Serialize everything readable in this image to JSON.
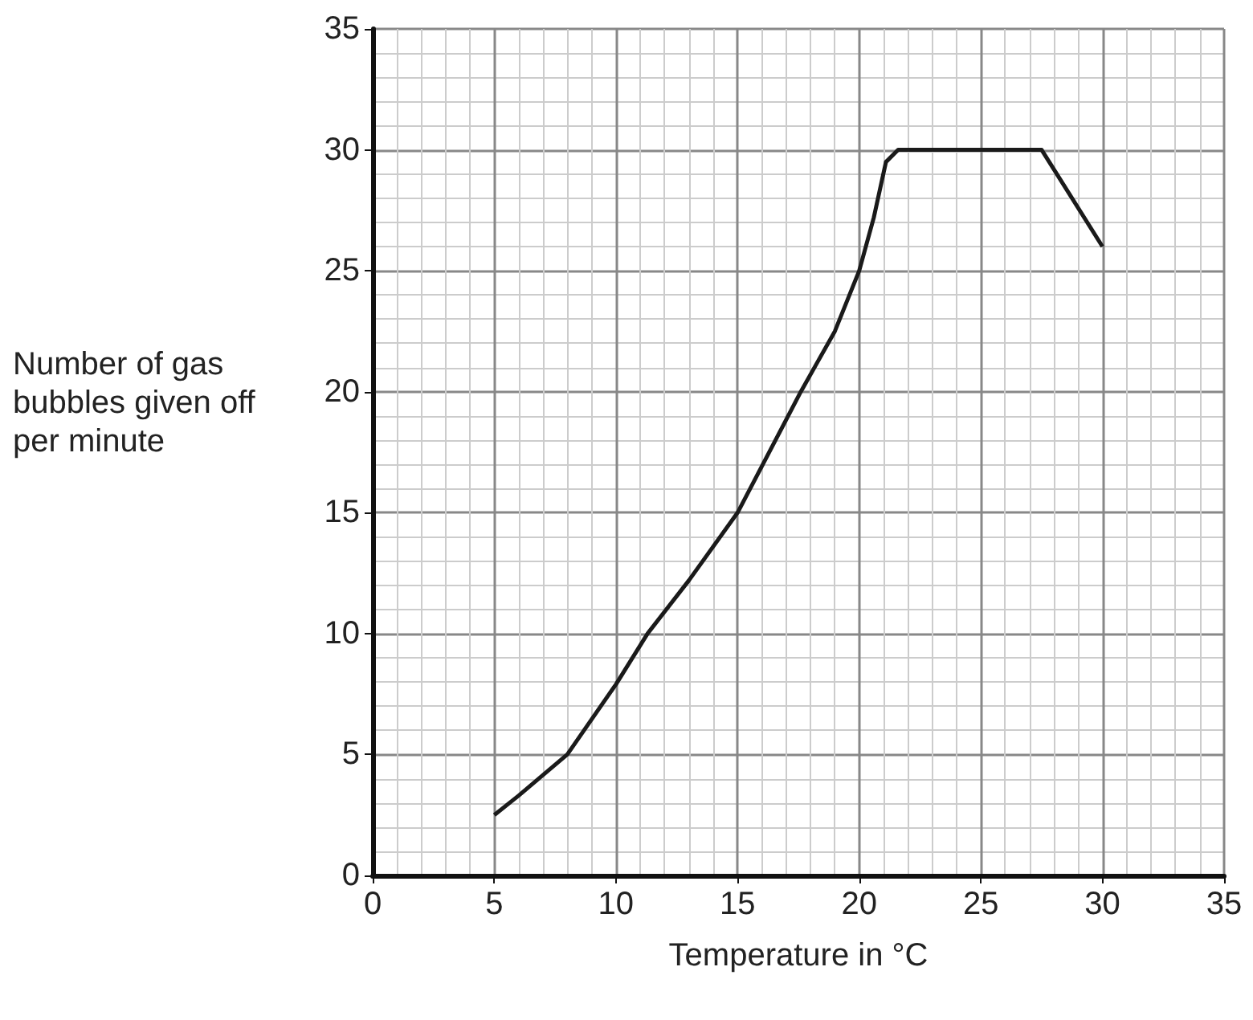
{
  "chart_data": {
    "type": "line",
    "xlabel": "Temperature in °C",
    "ylabel": "Number of gas bubbles given off per minute",
    "x": [
      5,
      6,
      8,
      10,
      11.3,
      13,
      15,
      17.6,
      19,
      20,
      20.6,
      21.1,
      21.6,
      27.5,
      30
    ],
    "series": [
      {
        "color": "#1a1a1a",
        "values": [
          2.5,
          3.3,
          5,
          7.9,
          10,
          12.2,
          15,
          20,
          22.5,
          25,
          27.2,
          29.5,
          30,
          30,
          26
        ]
      }
    ],
    "xlim": [
      0,
      35
    ],
    "xticks": [
      0,
      5,
      10,
      15,
      20,
      25,
      30,
      35
    ],
    "ylim": [
      0,
      35
    ],
    "yticks": [
      0,
      5,
      10,
      15,
      20,
      25,
      30,
      35
    ],
    "grid": true,
    "marker": "none",
    "line_style": "solid"
  }
}
